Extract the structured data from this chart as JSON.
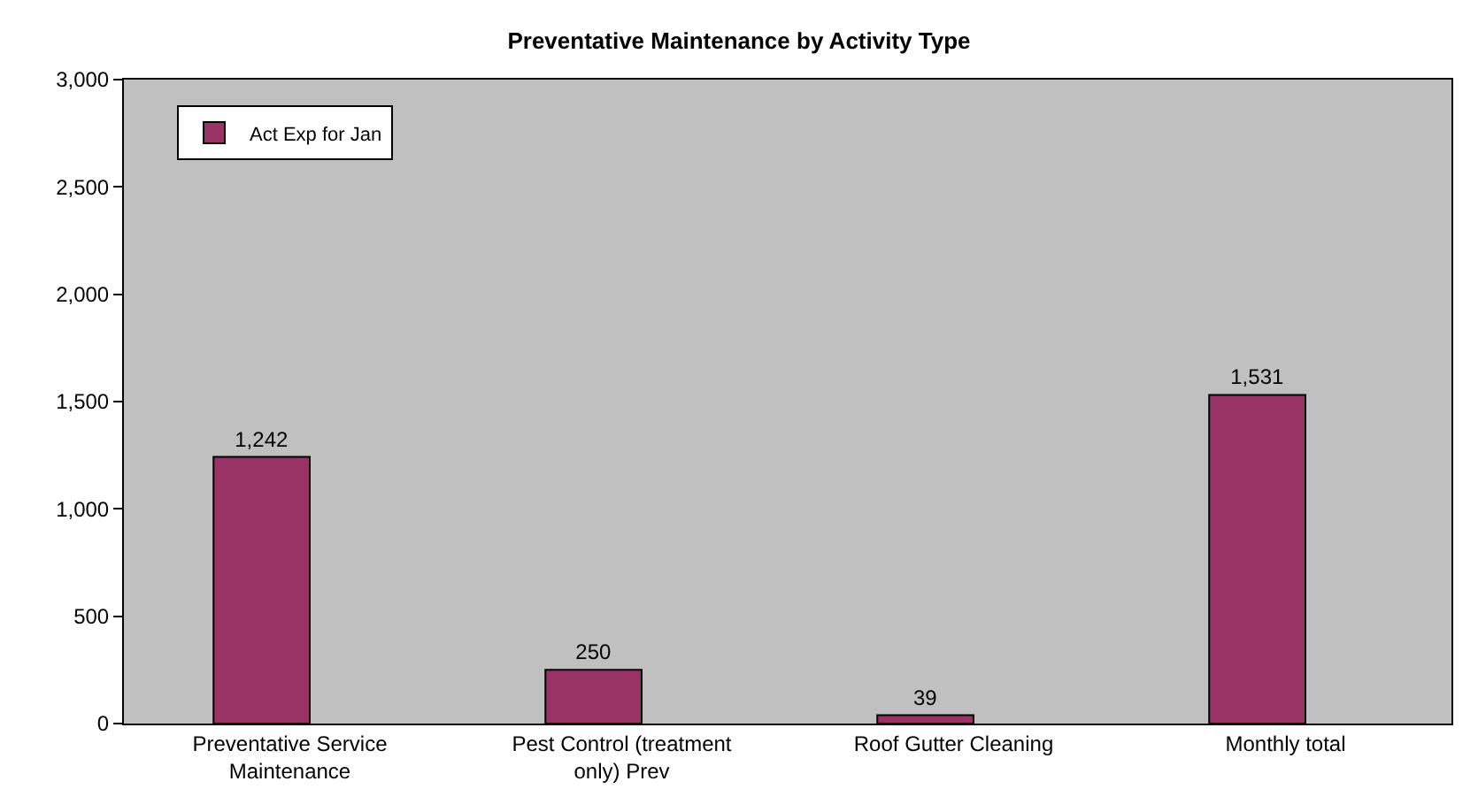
{
  "chart_data": {
    "type": "bar",
    "title": "Preventative Maintenance by Activity Type",
    "categories": [
      "Preventative Service Maintenance",
      "Pest Control (treatment only) Prev",
      "Roof Gutter Cleaning",
      "Monthly total"
    ],
    "series": [
      {
        "name": "Act Exp for Jan",
        "color": "#993366",
        "values": [
          1242,
          250,
          39,
          1531
        ]
      }
    ],
    "value_labels": [
      "1,242",
      "250",
      "39",
      "1,531"
    ],
    "ylim": [
      0,
      3000
    ],
    "yticks": [
      0,
      500,
      {
        "value": 1000,
        "label": "1,000"
      },
      {
        "value": 1500,
        "label": "1,500"
      },
      {
        "value": 2000,
        "label": "2,000"
      },
      {
        "value": 2500,
        "label": "2,500"
      },
      {
        "value": 3000,
        "label": "3,000"
      }
    ],
    "grid": false,
    "legend": "top left"
  }
}
